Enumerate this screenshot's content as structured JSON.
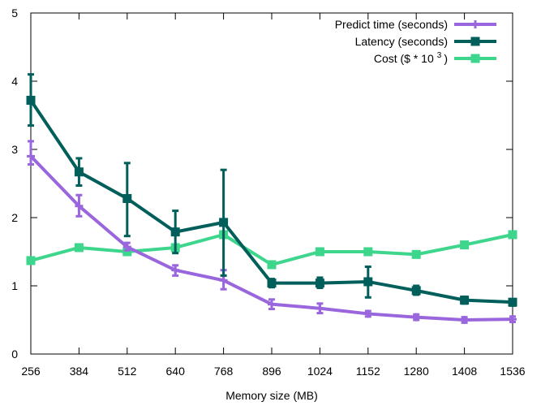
{
  "chart_data": {
    "type": "line",
    "title": "",
    "xlabel": "Memory size (MB)",
    "ylabel": "",
    "x": [
      256,
      384,
      512,
      640,
      768,
      896,
      1024,
      1152,
      1280,
      1408,
      1536
    ],
    "xlim": [
      256,
      1536
    ],
    "ylim": [
      0,
      5
    ],
    "yticks": [
      0,
      1,
      2,
      3,
      4,
      5
    ],
    "grid": false,
    "legend_position": "top-right",
    "series": [
      {
        "name": "Predict time (seconds)",
        "color": "#9966dd",
        "marker": "plus",
        "values": [
          2.9,
          2.17,
          1.57,
          1.23,
          1.08,
          0.73,
          0.67,
          0.59,
          0.54,
          0.5,
          0.51
        ],
        "err_low": [
          2.78,
          2.02,
          1.52,
          1.15,
          0.95,
          0.66,
          0.6,
          0.55,
          0.5,
          0.46,
          0.47
        ],
        "err_high": [
          3.12,
          2.33,
          1.63,
          1.3,
          1.23,
          0.8,
          0.74,
          0.63,
          0.58,
          0.54,
          0.55
        ]
      },
      {
        "name": "Latency (seconds)",
        "color": "#005f5a",
        "marker": "square",
        "values": [
          3.72,
          2.67,
          2.28,
          1.79,
          1.93,
          1.04,
          1.04,
          1.06,
          0.93,
          0.79,
          0.76
        ],
        "err_low": [
          3.35,
          2.47,
          1.73,
          1.48,
          1.15,
          0.98,
          0.97,
          0.83,
          0.87,
          0.74,
          0.71
        ],
        "err_high": [
          4.1,
          2.87,
          2.8,
          2.1,
          2.7,
          1.1,
          1.12,
          1.28,
          1.0,
          0.84,
          0.8
        ]
      },
      {
        "name": "Cost ($ * 10",
        "name_superscript": "3",
        "name_suffix": ")",
        "color": "#3dd68c",
        "marker": "filled-square",
        "values": [
          1.37,
          1.56,
          1.5,
          1.56,
          1.75,
          1.31,
          1.5,
          1.5,
          1.46,
          1.6,
          1.75
        ]
      }
    ]
  }
}
